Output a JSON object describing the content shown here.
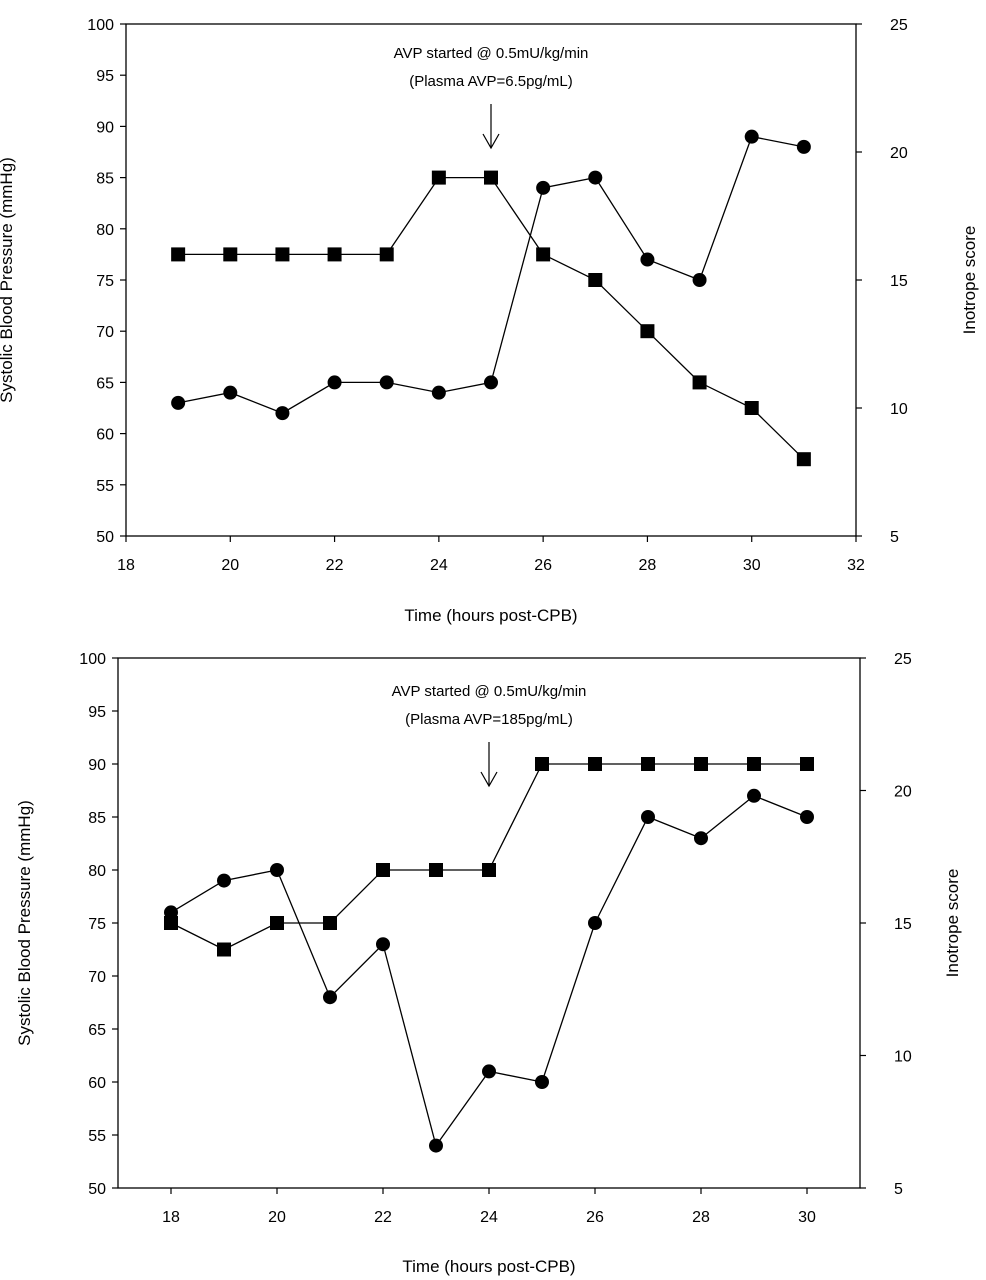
{
  "chart_data": [
    {
      "type": "line",
      "xlabel": "Time  (hours post-CPB)",
      "ylabel": "Systolic Blood Pressure (mmHg)",
      "y2label": "Inotrope score",
      "xlim": [
        18,
        32
      ],
      "ylim": [
        50,
        100
      ],
      "y2lim": [
        5,
        25
      ],
      "xticks": [
        18,
        20,
        22,
        24,
        26,
        28,
        30,
        32
      ],
      "yticks": [
        50,
        55,
        60,
        65,
        70,
        75,
        80,
        85,
        90,
        95,
        100
      ],
      "y2ticks": [
        5,
        10,
        15,
        20,
        25
      ],
      "grid": false,
      "annotation": {
        "line1": "AVP started @ 0.5mU/kg/min",
        "line2": "(Plasma AVP=6.5pg/mL)",
        "x": 25
      },
      "series": [
        {
          "marker": "circle",
          "axis": "left",
          "x": [
            19,
            20,
            21,
            22,
            23,
            24,
            25,
            26,
            27,
            28,
            29,
            30,
            31
          ],
          "values": [
            63,
            64,
            62,
            65,
            65,
            64,
            65,
            84,
            85,
            77,
            75,
            89,
            88
          ]
        },
        {
          "marker": "square",
          "axis": "right",
          "x": [
            19,
            20,
            21,
            22,
            23,
            24,
            25,
            26,
            27,
            28,
            29,
            30,
            31
          ],
          "values": [
            16,
            16,
            16,
            16,
            16,
            19,
            19,
            16,
            15,
            13,
            11,
            10,
            8
          ]
        }
      ]
    },
    {
      "type": "line",
      "xlabel": "Time  (hours post-CPB)",
      "ylabel": "Systolic Blood Pressure (mmHg)",
      "y2label": "Inotrope score",
      "xlim": [
        17,
        31
      ],
      "ylim": [
        50,
        100
      ],
      "y2lim": [
        5,
        25
      ],
      "xticks": [
        18,
        20,
        22,
        24,
        26,
        28,
        30
      ],
      "yticks": [
        50,
        55,
        60,
        65,
        70,
        75,
        80,
        85,
        90,
        95,
        100
      ],
      "y2ticks": [
        5,
        10,
        15,
        20,
        25
      ],
      "grid": false,
      "annotation": {
        "line1": "AVP started @ 0.5mU/kg/min",
        "line2": "(Plasma AVP=185pg/mL)",
        "x": 24
      },
      "series": [
        {
          "marker": "circle",
          "axis": "left",
          "x": [
            18,
            19,
            20,
            21,
            22,
            23,
            24,
            25,
            26,
            27,
            28,
            29,
            30
          ],
          "values": [
            76,
            79,
            80,
            68,
            73,
            54,
            61,
            60,
            75,
            85,
            83,
            87,
            85
          ]
        },
        {
          "marker": "square",
          "axis": "right",
          "x": [
            18,
            19,
            20,
            21,
            22,
            23,
            24,
            25,
            26,
            27,
            28,
            29,
            30
          ],
          "values": [
            15,
            14,
            15,
            15,
            17,
            17,
            17,
            21,
            21,
            21,
            21,
            21,
            21
          ]
        }
      ]
    }
  ]
}
